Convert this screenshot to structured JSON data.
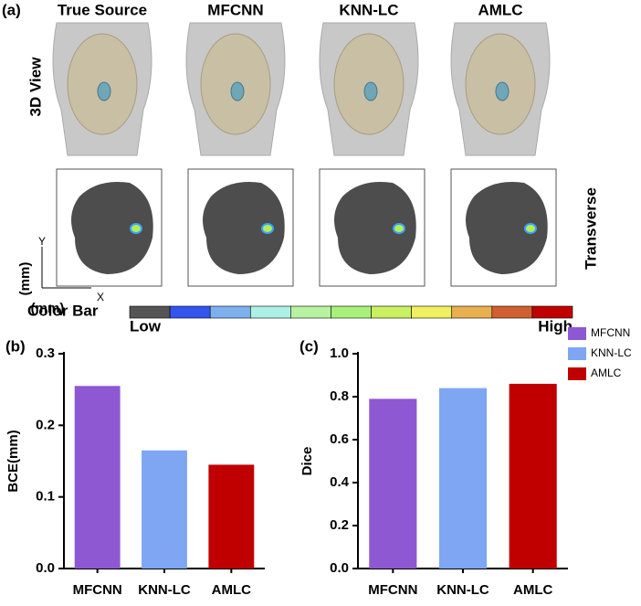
{
  "figure": {
    "panel_label": "(a)",
    "columns": [
      "True Source",
      "MFCNN",
      "KNN-LC",
      "AMLC"
    ],
    "row_labels": [
      "3D View",
      "Transverse"
    ],
    "axis_labels": {
      "y": "Y",
      "x": "X",
      "y_unit": "(mm)",
      "x_unit": "(mm)"
    },
    "colorbar": {
      "label": "Color Bar",
      "low": "Low",
      "high": "High"
    }
  },
  "chart_data": [
    {
      "type": "bar",
      "panel_label": "(b)",
      "ylabel": "BCE(mm)",
      "categories": [
        "MFCNN",
        "KNN-LC",
        "AMLC"
      ],
      "values": [
        0.255,
        0.165,
        0.145
      ],
      "colors": [
        "#8e58d2",
        "#7ea6f2",
        "#c00000"
      ],
      "ylim": [
        0,
        0.3
      ],
      "yticks": [
        {
          "value": 0,
          "label": "0.0"
        },
        0.1,
        0.2,
        0.3
      ]
    },
    {
      "type": "bar",
      "panel_label": "(c)",
      "ylabel": "Dice",
      "categories": [
        "MFCNN",
        "KNN-LC",
        "AMLC"
      ],
      "values": [
        0.79,
        0.84,
        0.86
      ],
      "colors": [
        "#8e58d2",
        "#7ea6f2",
        "#c00000"
      ],
      "ylim": [
        0,
        1
      ],
      "yticks": [
        {
          "value": 0,
          "label": "0.0"
        },
        0.2,
        0.4,
        0.6,
        0.8,
        {
          "value": 1,
          "label": "1.0"
        }
      ],
      "legend": "top-right"
    }
  ]
}
